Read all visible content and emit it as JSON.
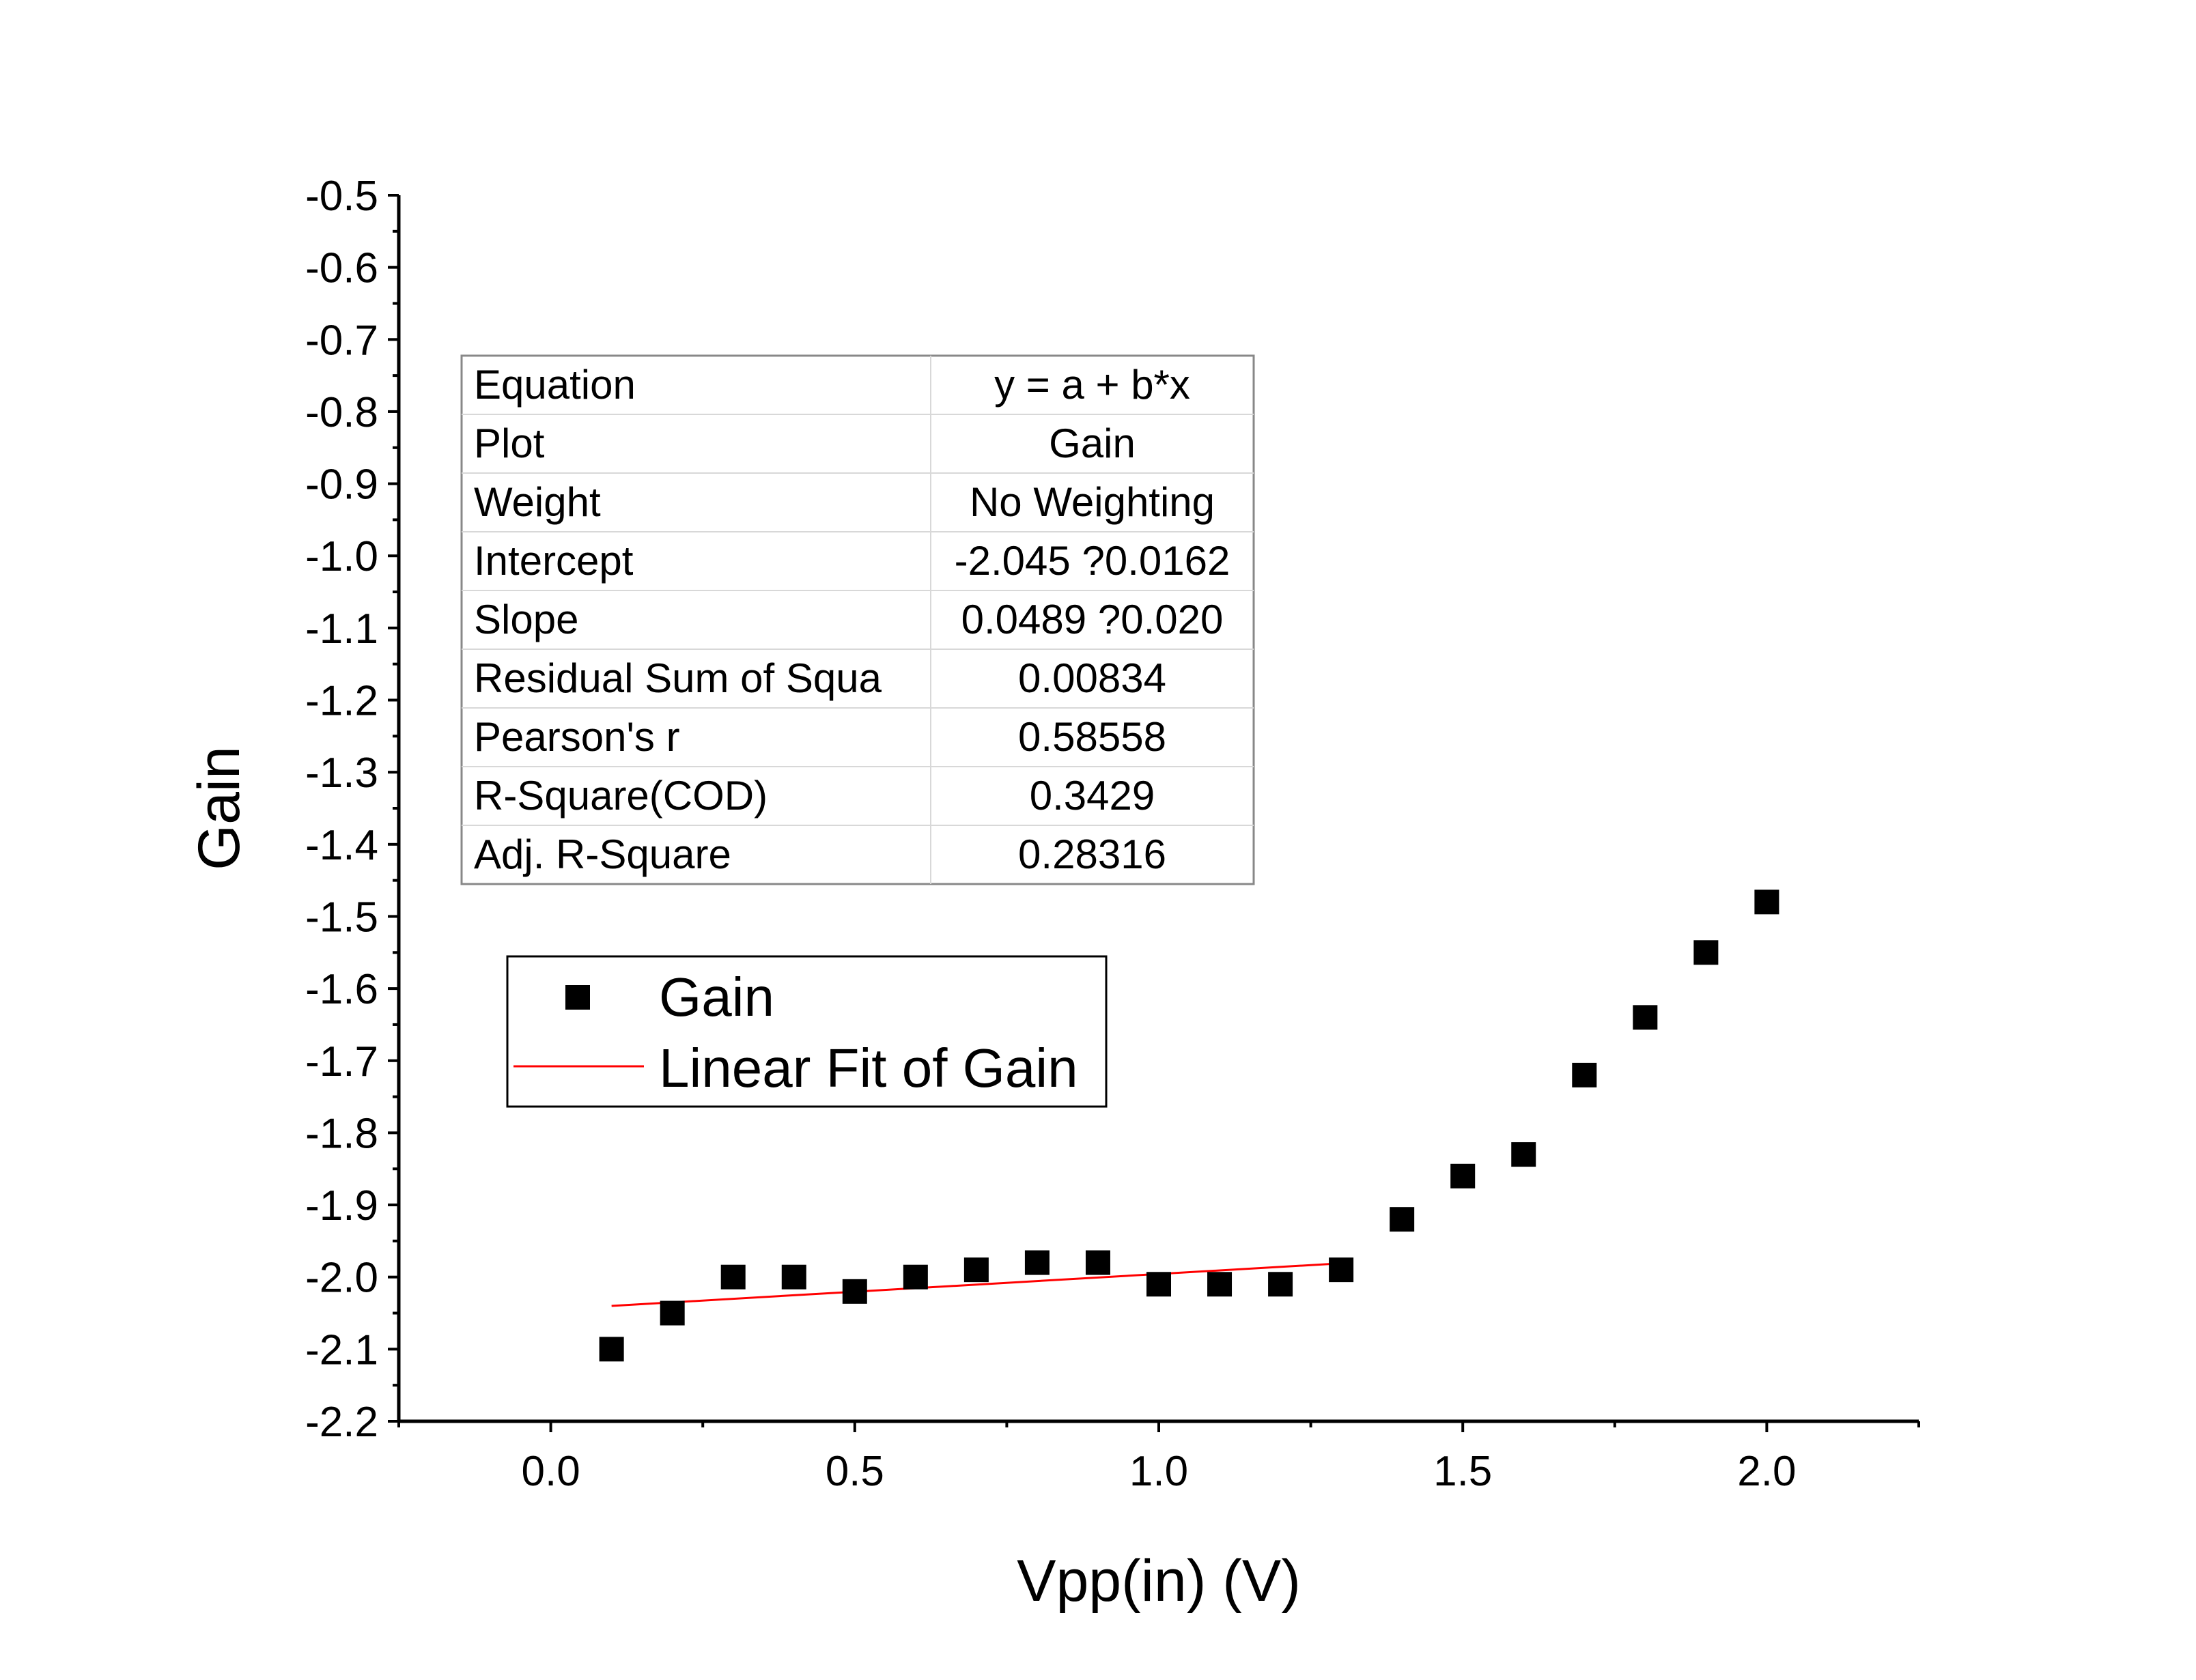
{
  "chart_data": {
    "type": "scatter",
    "xlabel": "Vpp(in) (V)",
    "ylabel": "Gain",
    "xlim": [
      -0.25,
      2.25
    ],
    "ylim": [
      -2.2,
      -0.5
    ],
    "x_ticks": [
      "0.0",
      "0.5",
      "1.0",
      "1.5",
      "2.0"
    ],
    "y_ticks": [
      "-0.5",
      "-0.6",
      "-0.7",
      "-0.8",
      "-0.9",
      "-1.0",
      "-1.1",
      "-1.2",
      "-1.3",
      "-1.4",
      "-1.5",
      "-1.6",
      "-1.7",
      "-1.8",
      "-1.9",
      "-2.0",
      "-2.1",
      "-2.2"
    ],
    "grid": false,
    "series": [
      {
        "name": "Gain",
        "marker": "square",
        "color": "#000000",
        "x": [
          0.1,
          0.2,
          0.3,
          0.4,
          0.5,
          0.6,
          0.7,
          0.8,
          0.9,
          1.0,
          1.1,
          1.2,
          1.3,
          1.4,
          1.5,
          1.6,
          1.7,
          1.8,
          1.9,
          2.0
        ],
        "y": [
          -2.1,
          -2.05,
          -2.0,
          -2.0,
          -2.02,
          -2.0,
          -1.99,
          -1.98,
          -1.98,
          -2.01,
          -2.01,
          -2.01,
          -1.99,
          -1.92,
          -1.86,
          -1.83,
          -1.72,
          -1.64,
          -1.55,
          -1.48
        ]
      },
      {
        "name": "Linear Fit of Gain",
        "type": "line",
        "color": "#ff0000",
        "x": [
          0.1,
          1.3
        ],
        "y": [
          -2.04,
          -1.981
        ]
      }
    ],
    "stats_table": [
      [
        "Equation",
        "y = a + b*x"
      ],
      [
        "Plot",
        "Gain"
      ],
      [
        "Weight",
        "No Weighting"
      ],
      [
        "Intercept",
        "-2.045 ?0.0162"
      ],
      [
        "Slope",
        "0.0489 ?0.020"
      ],
      [
        "Residual Sum of Squa",
        "0.00834"
      ],
      [
        "Pearson's r",
        "0.58558"
      ],
      [
        "R-Square(COD)",
        "0.3429"
      ],
      [
        "Adj. R-Square",
        "0.28316"
      ]
    ],
    "legend": {
      "placement": "middle-left",
      "entries": [
        "Gain",
        "Linear Fit of Gain"
      ]
    }
  }
}
